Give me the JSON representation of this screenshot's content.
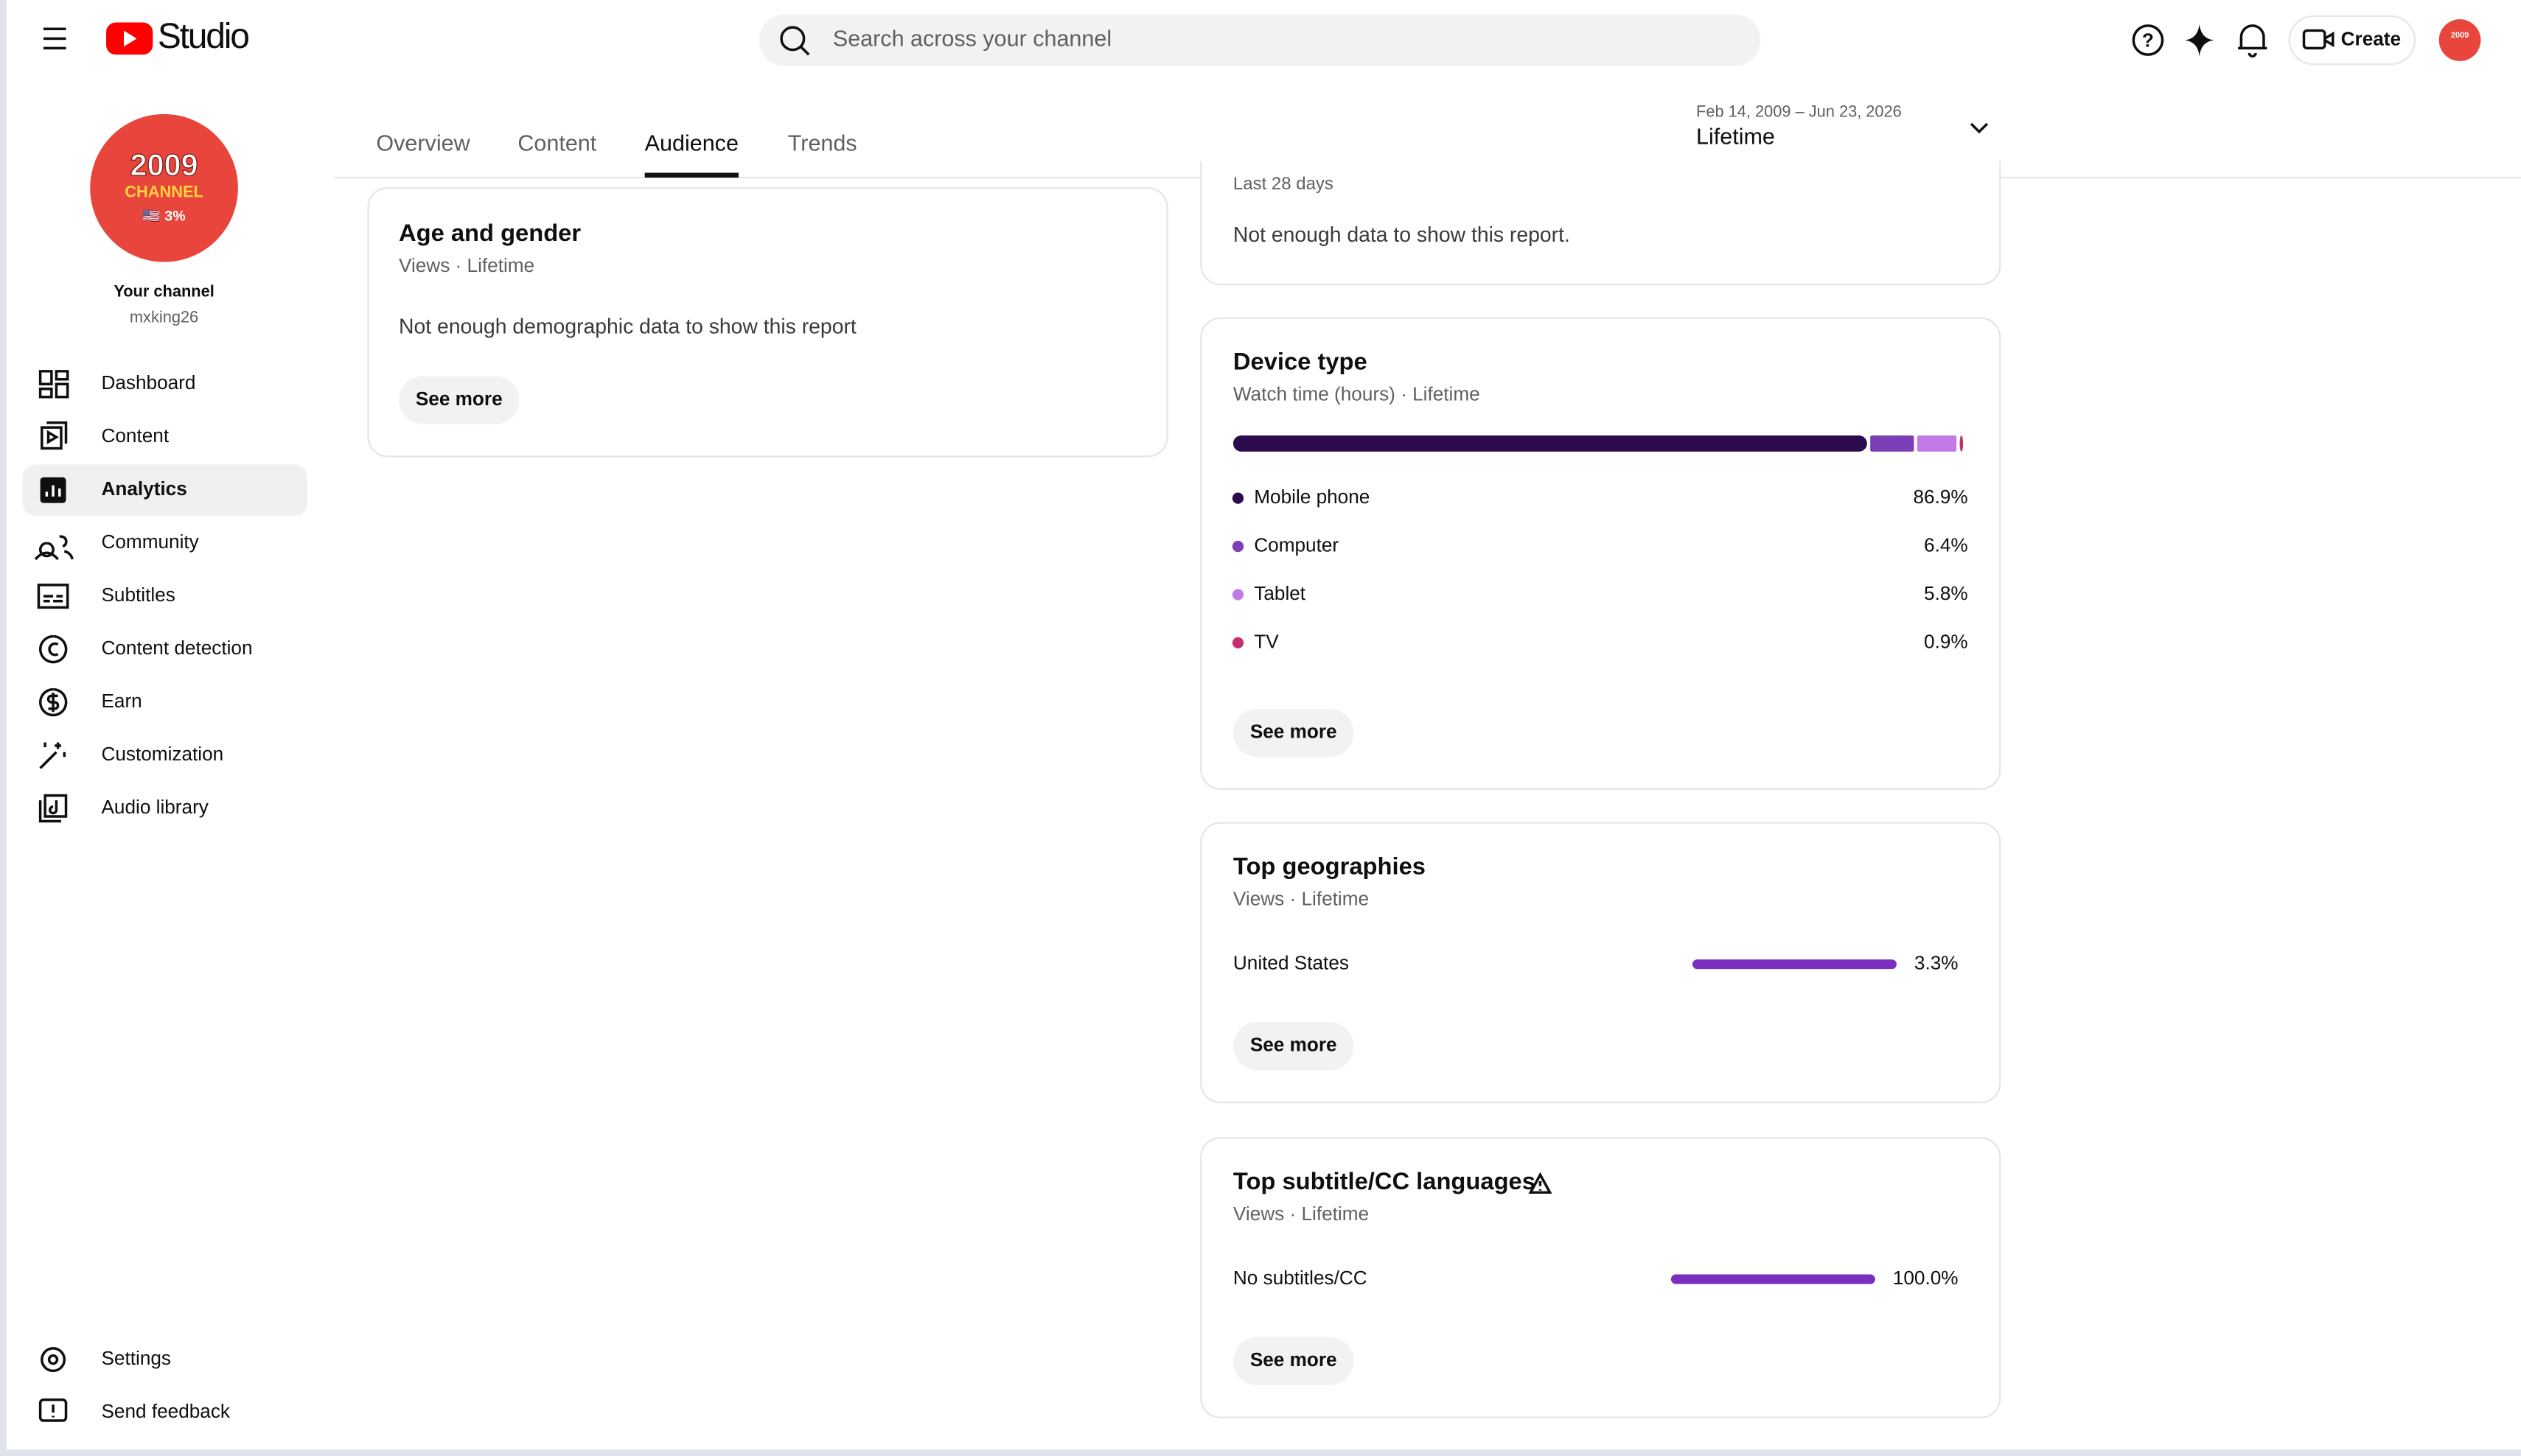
{
  "header": {
    "logo_text": "Studio",
    "search_placeholder": "Search across your channel",
    "create": "Create"
  },
  "sidebar": {
    "avatar": {
      "line1": "2009",
      "line2": "CHANNEL",
      "line3": "🇺🇸 3%"
    },
    "channel_label": "Your channel",
    "handle": "mxking26",
    "nav": [
      {
        "label": "Dashboard",
        "selected": false
      },
      {
        "label": "Content",
        "selected": false
      },
      {
        "label": "Analytics",
        "selected": true
      },
      {
        "label": "Community",
        "selected": false
      },
      {
        "label": "Subtitles",
        "selected": false
      },
      {
        "label": "Content detection",
        "selected": false
      },
      {
        "label": "Earn",
        "selected": false
      },
      {
        "label": "Customization",
        "selected": false
      },
      {
        "label": "Audio library",
        "selected": false
      }
    ],
    "footer_nav": [
      "Settings",
      "Send feedback"
    ]
  },
  "tabs": [
    {
      "label": "Overview",
      "selected": false
    },
    {
      "label": "Content",
      "selected": false
    },
    {
      "label": "Audience",
      "selected": true
    },
    {
      "label": "Trends",
      "selected": false
    }
  ],
  "date_range": {
    "range": "Feb 14, 2009 – Jun 23, 2026",
    "label": "Lifetime"
  },
  "age_gender": {
    "title": "Age and gender",
    "subtitle": "Views · Lifetime",
    "message": "Not enough demographic data to show this report",
    "button": "See more"
  },
  "partial_card": {
    "subtitle": "Last 28 days",
    "message": "Not enough data to show this report."
  },
  "device_type": {
    "title": "Device type",
    "subtitle": "Watch time (hours) · Lifetime",
    "button": "See more",
    "items": [
      {
        "name": "Mobile phone",
        "color": "#2b0b4d",
        "value": 86.9,
        "label": "86.9%"
      },
      {
        "name": "Computer",
        "color": "#7b3fb8",
        "value": 6.4,
        "label": "6.4%"
      },
      {
        "name": "Tablet",
        "color": "#c27be6",
        "value": 5.8,
        "label": "5.8%"
      },
      {
        "name": "TV",
        "color": "#c4306f",
        "value": 0.9,
        "label": "0.9%"
      }
    ]
  },
  "top_geographies": {
    "title": "Top geographies",
    "subtitle": "Views · Lifetime",
    "button": "See more",
    "color": "#7b2fbe",
    "rows": [
      {
        "name": "United States",
        "value": 3.3,
        "label": "3.3%"
      }
    ]
  },
  "top_subtitles": {
    "title": "Top subtitle/CC languages",
    "subtitle": "Views · Lifetime",
    "button": "See more",
    "color": "#7b2fbe",
    "rows": [
      {
        "name": "No subtitles/CC",
        "value": 100.0,
        "label": "100.0%"
      }
    ]
  }
}
